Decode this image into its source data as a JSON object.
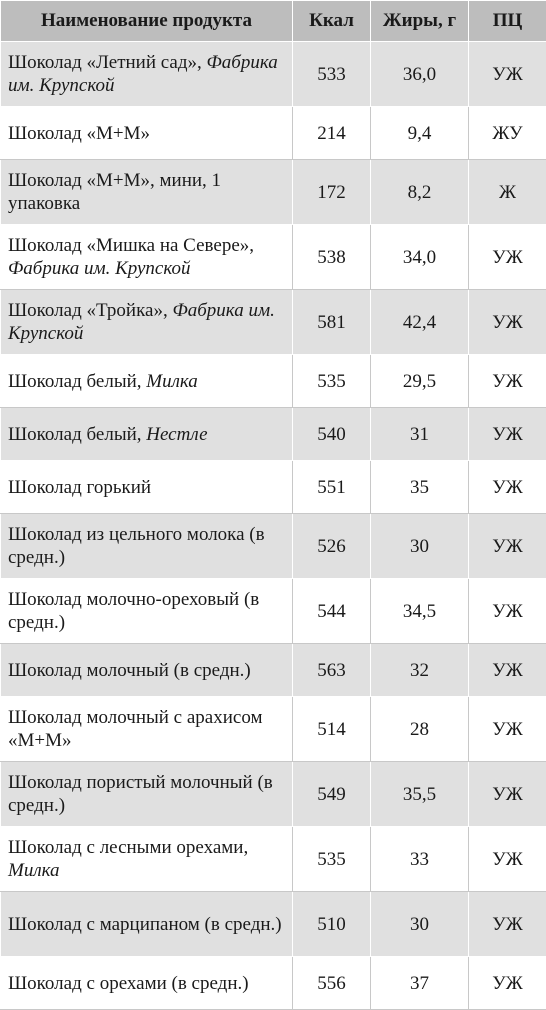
{
  "table": {
    "headers": {
      "name": "Наименование продукта",
      "kcal": "Ккал",
      "fat": "Жиры, г",
      "pc": "ПЦ"
    },
    "rows": [
      {
        "name_plain": "Шоколад «Летний сад», ",
        "name_italic": "Фабрика им. Крупской",
        "kcal": "533",
        "fat": "36,0",
        "pc": "УЖ"
      },
      {
        "name_plain": "Шоколад «М+М»",
        "name_italic": "",
        "kcal": "214",
        "fat": "9,4",
        "pc": "ЖУ"
      },
      {
        "name_plain": "Шоколад «М+М», мини, 1 упаковка",
        "name_italic": "",
        "kcal": "172",
        "fat": "8,2",
        "pc": "Ж"
      },
      {
        "name_plain": "Шоколад «Мишка на Севере», ",
        "name_italic": "Фабрика им. Крупской",
        "kcal": "538",
        "fat": "34,0",
        "pc": "УЖ"
      },
      {
        "name_plain": "Шоколад «Тройка», ",
        "name_italic": "Фабрика им. Крупской",
        "kcal": "581",
        "fat": "42,4",
        "pc": "УЖ"
      },
      {
        "name_plain": "Шоколад белый, ",
        "name_italic": "Милка",
        "kcal": "535",
        "fat": "29,5",
        "pc": "УЖ"
      },
      {
        "name_plain": "Шоколад белый, ",
        "name_italic": "Нестле",
        "kcal": "540",
        "fat": "31",
        "pc": "УЖ"
      },
      {
        "name_plain": "Шоколад горький",
        "name_italic": "",
        "kcal": "551",
        "fat": "35",
        "pc": "УЖ"
      },
      {
        "name_plain": "Шоколад из цельного молока (в средн.)",
        "name_italic": "",
        "kcal": "526",
        "fat": "30",
        "pc": "УЖ"
      },
      {
        "name_plain": "Шоколад молочно-ореховый (в средн.)",
        "name_italic": "",
        "kcal": "544",
        "fat": "34,5",
        "pc": "УЖ"
      },
      {
        "name_plain": "Шоколад молочный (в средн.)",
        "name_italic": "",
        "kcal": "563",
        "fat": "32",
        "pc": "УЖ"
      },
      {
        "name_plain": "Шоколад молочный с арахисом «М+М»",
        "name_italic": "",
        "kcal": "514",
        "fat": "28",
        "pc": "УЖ"
      },
      {
        "name_plain": "Шоколад пористый молочный (в средн.)",
        "name_italic": "",
        "kcal": "549",
        "fat": "35,5",
        "pc": "УЖ"
      },
      {
        "name_plain": "Шоколад с лесными орехами, ",
        "name_italic": "Милка",
        "kcal": "535",
        "fat": "33",
        "pc": "УЖ"
      },
      {
        "name_plain": "Шоколад с марципаном (в средн.)",
        "name_italic": "",
        "kcal": "510",
        "fat": "30",
        "pc": "УЖ"
      },
      {
        "name_plain": "Шоколад с орехами (в средн.)",
        "name_italic": "",
        "kcal": "556",
        "fat": "37",
        "pc": "УЖ"
      }
    ]
  }
}
